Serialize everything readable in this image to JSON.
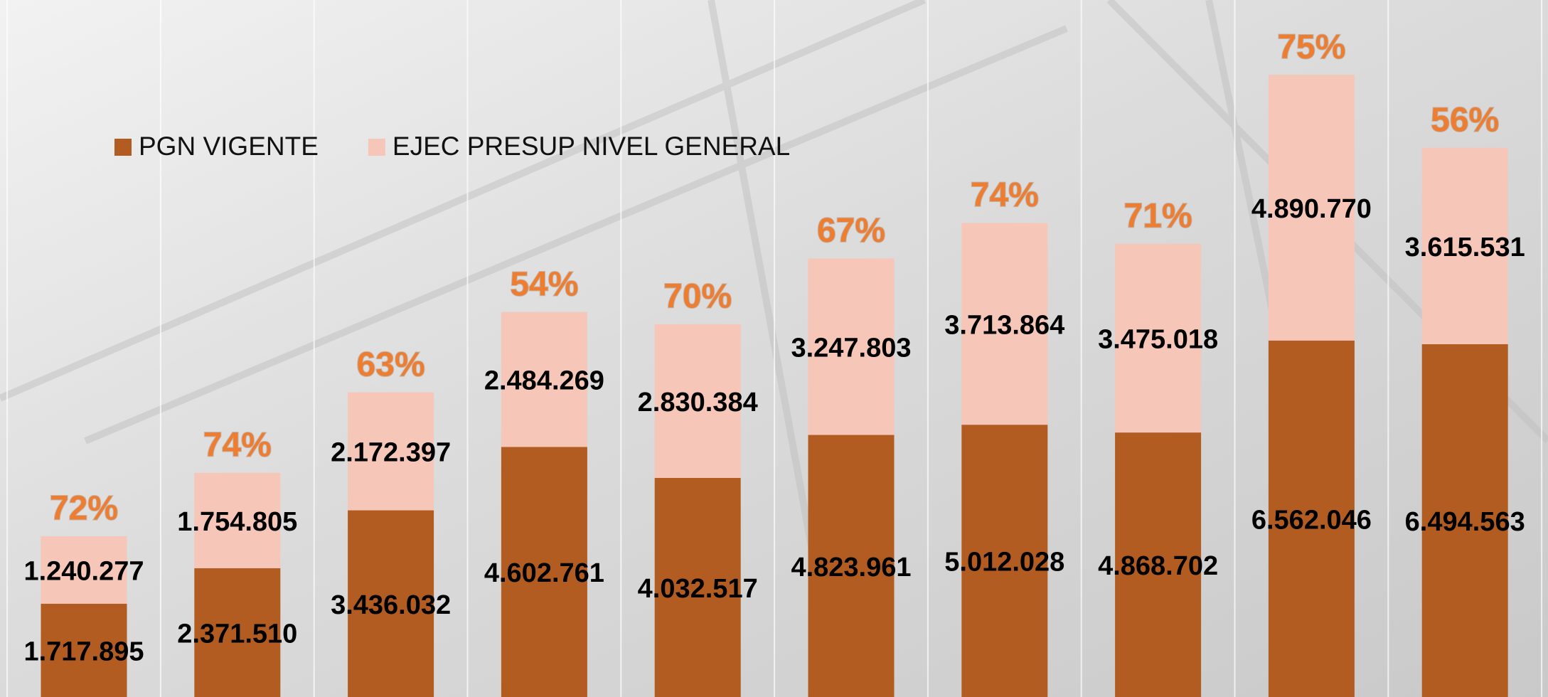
{
  "chart_data": {
    "type": "stacked-bar",
    "categories": [
      null,
      null,
      null,
      null,
      null,
      null,
      null,
      null,
      null,
      null
    ],
    "series": [
      {
        "name": "PGN VIGENTE",
        "color": "#b35c22",
        "values": [
          1717895,
          2371510,
          3436032,
          4602761,
          4032517,
          4823961,
          5012028,
          4868702,
          6562046,
          6494563
        ],
        "value_labels": [
          "1.717.895",
          "2.371.510",
          "3.436.032",
          "4.602.761",
          "4.032.517",
          "4.823.961",
          "5.012.028",
          "4.868.702",
          "6.562.046",
          "6.494.563"
        ]
      },
      {
        "name": "EJEC PRESUP NIVEL GENERAL",
        "color": "#f6c6b8",
        "values": [
          1240277,
          1754805,
          2172397,
          2484269,
          2830384,
          3247803,
          3713864,
          3475018,
          4890770,
          3615531
        ],
        "value_labels": [
          "1.240.277",
          "1.754.805",
          "2.172.397",
          "2.484.269",
          "2.830.384",
          "3.247.803",
          "3.713.864",
          "3.475.018",
          "4.890.770",
          "3.615.531"
        ]
      }
    ],
    "annotations": [
      "72%",
      "74%",
      "63%",
      "54%",
      "70%",
      "67%",
      "74%",
      "71%",
      "75%",
      "56%"
    ],
    "ylim": [
      0,
      12830000
    ]
  }
}
